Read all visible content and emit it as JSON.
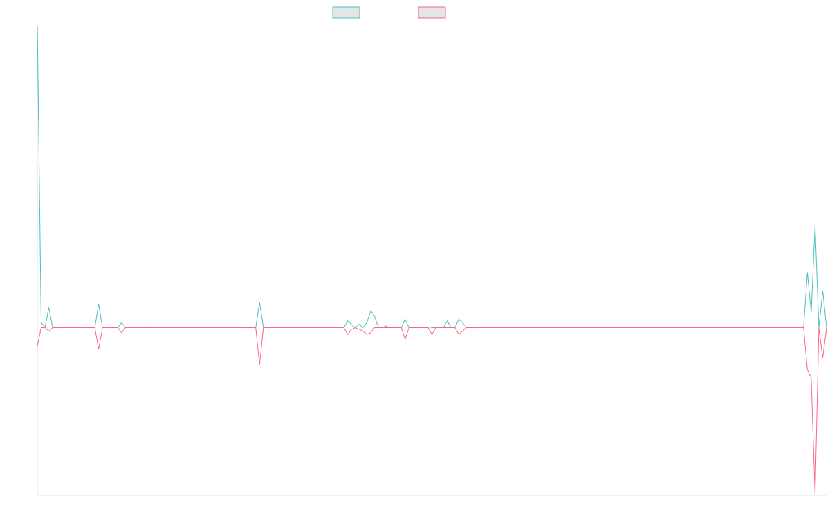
{
  "chart_data": {
    "type": "line",
    "title": "",
    "xlabel": "",
    "ylabel": "",
    "grid": false,
    "legend_position": "top-center",
    "ylim": [
      -100,
      180
    ],
    "series": [
      {
        "color": "#4bc0c0",
        "fill": "#e5e5e5",
        "values": [
          180,
          3,
          0,
          12,
          0,
          0,
          0,
          0,
          0,
          0,
          0,
          0,
          0,
          0,
          0,
          0,
          14,
          0,
          0,
          0,
          0,
          0,
          3,
          0,
          0,
          0,
          0,
          0,
          0.5,
          0,
          0,
          0,
          0,
          0,
          0,
          0,
          0,
          0,
          0,
          0,
          0,
          0,
          0,
          0,
          0,
          0,
          0,
          0,
          0,
          0,
          0,
          0,
          0,
          0,
          0,
          0,
          0,
          0,
          15,
          0,
          0,
          0,
          0,
          0,
          0,
          0,
          0,
          0,
          0,
          0,
          0,
          0,
          0,
          0,
          0,
          0,
          0,
          0,
          0,
          0,
          0,
          4,
          2,
          0,
          2,
          0,
          3,
          10,
          7,
          0,
          0,
          1,
          0,
          0,
          0.5,
          0,
          5,
          0,
          0,
          0,
          0,
          0,
          0.5,
          0,
          0,
          0,
          0,
          4,
          0,
          0,
          5,
          3,
          0,
          0,
          0,
          0,
          0,
          0,
          0,
          0,
          0,
          0,
          0,
          0,
          0,
          0,
          0,
          0,
          0,
          0,
          0,
          0,
          0,
          0,
          0,
          0,
          0,
          0,
          0,
          0,
          0,
          0,
          0,
          0,
          0,
          0,
          0,
          0,
          0,
          0,
          0,
          0,
          0,
          0,
          0,
          0,
          0,
          0,
          0,
          0,
          0,
          0,
          0,
          0,
          0,
          0,
          0,
          0,
          0,
          0,
          0,
          0,
          0,
          0,
          0,
          0,
          0,
          0,
          0,
          0,
          0,
          0,
          0,
          0,
          0,
          0,
          0,
          0,
          0,
          0,
          0,
          0,
          0,
          0,
          0,
          0,
          0,
          0,
          0,
          0,
          0,
          33,
          9,
          61,
          0,
          22,
          0
        ]
      },
      {
        "color": "#ff6384",
        "fill": "#e5e5e5",
        "values": [
          -11,
          0,
          0,
          -2,
          0,
          0,
          0,
          0,
          0,
          0,
          0,
          0,
          0,
          0,
          0,
          0,
          -13,
          0,
          0,
          0,
          0,
          0,
          -3,
          0,
          0,
          0,
          0,
          0,
          0,
          0,
          0,
          0,
          0,
          0,
          0,
          0,
          0,
          0,
          0,
          0,
          0,
          0,
          0,
          0,
          0,
          0,
          0,
          0,
          0,
          0,
          0,
          0,
          0,
          0,
          0,
          0,
          0,
          0,
          -22,
          0,
          0,
          0,
          0,
          0,
          0,
          0,
          0,
          0,
          0,
          0,
          0,
          0,
          0,
          0,
          0,
          0,
          0,
          0,
          0,
          0,
          0,
          -4,
          -1,
          0,
          -1,
          -2,
          -4,
          -3,
          0,
          0,
          0,
          0,
          0,
          0,
          0,
          0,
          -7,
          0,
          0,
          0,
          0,
          0,
          0,
          -4,
          0,
          0,
          0,
          0,
          0,
          0,
          -4,
          -2,
          0,
          0,
          0,
          0,
          0,
          0,
          0,
          0,
          0,
          0,
          0,
          0,
          0,
          0,
          0,
          0,
          0,
          0,
          0,
          0,
          0,
          0,
          0,
          0,
          0,
          0,
          0,
          0,
          0,
          0,
          0,
          0,
          0,
          0,
          0,
          0,
          0,
          0,
          0,
          0,
          0,
          0,
          0,
          0,
          0,
          0,
          0,
          0,
          0,
          0,
          0,
          0,
          0,
          0,
          0,
          0,
          0,
          0,
          0,
          0,
          0,
          0,
          0,
          0,
          0,
          0,
          0,
          0,
          0,
          0,
          0,
          0,
          0,
          0,
          0,
          0,
          0,
          0,
          0,
          0,
          0,
          0,
          0,
          0,
          0,
          0,
          0,
          0,
          0,
          -25,
          -30,
          -100,
          0,
          -18,
          0
        ]
      }
    ]
  }
}
